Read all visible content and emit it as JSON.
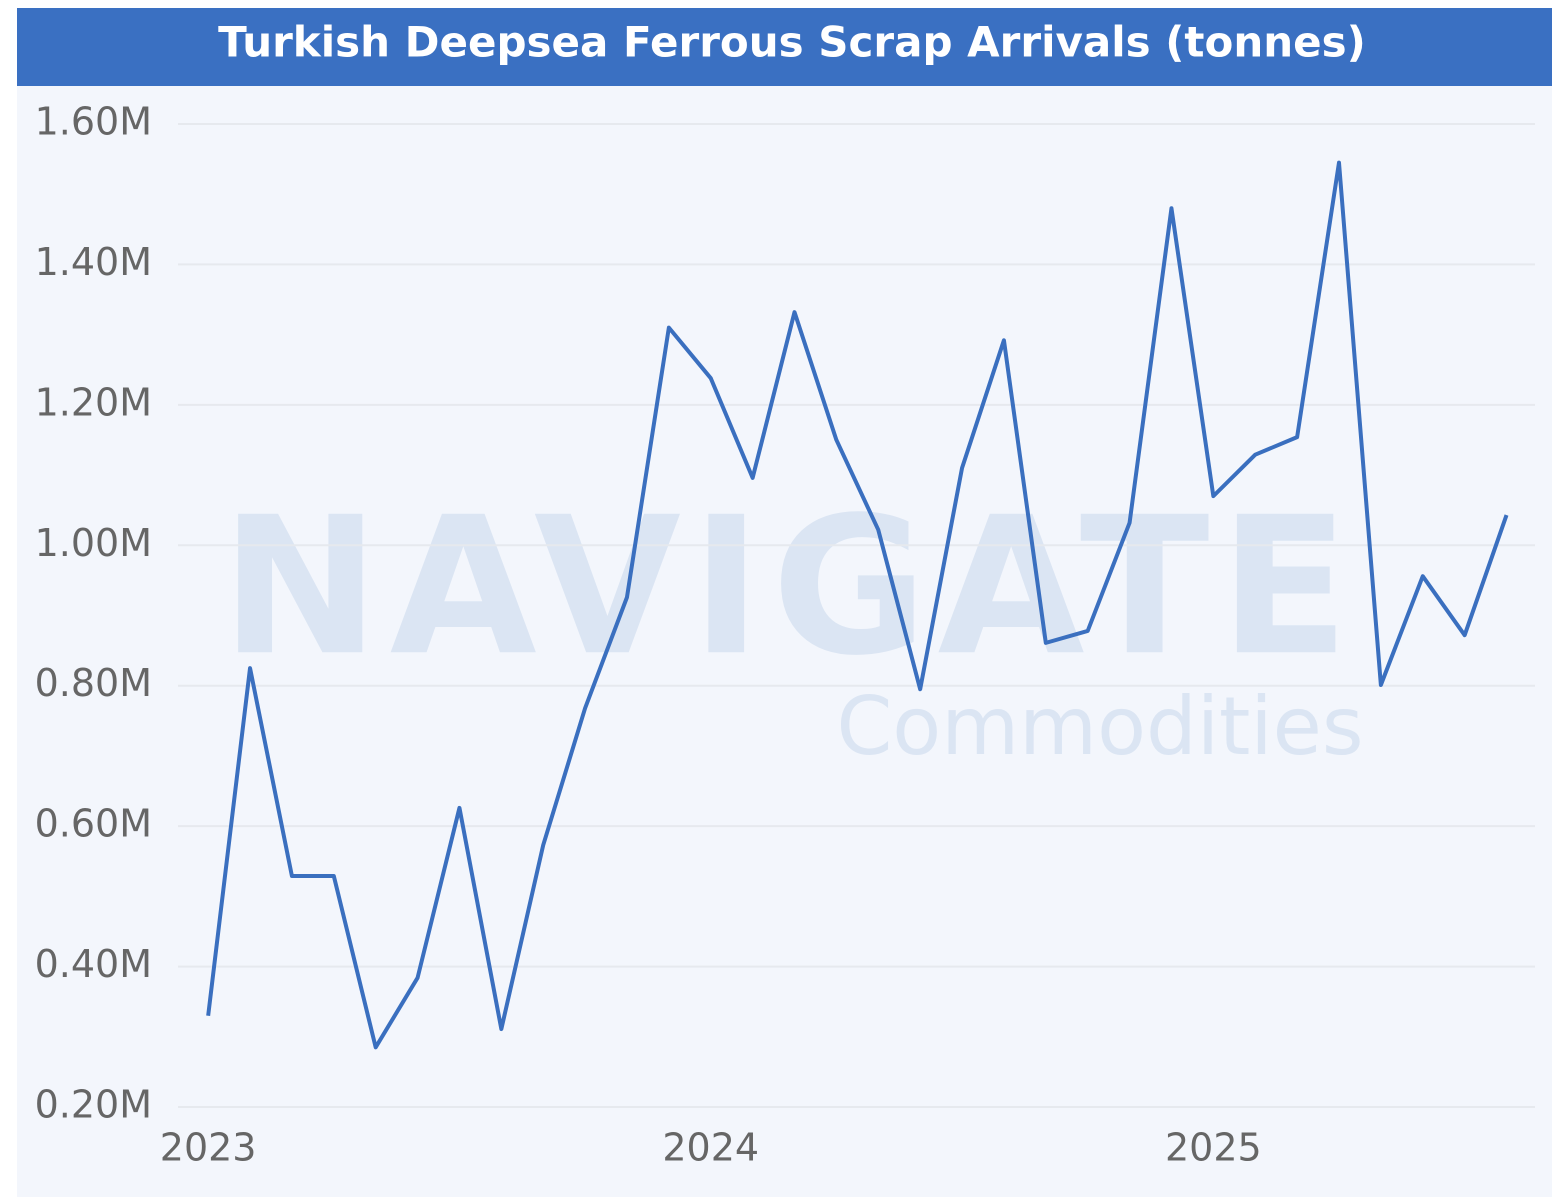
{
  "chart_data": {
    "type": "line",
    "title": "Turkish Deepsea Ferrous Scrap Arrivals (tonnes)",
    "watermark": [
      "NAVIGATE",
      "Commodities"
    ],
    "x": [
      "2023-01",
      "2023-02",
      "2023-03",
      "2023-04",
      "2023-05",
      "2023-06",
      "2023-07",
      "2023-08",
      "2023-09",
      "2023-10",
      "2023-11",
      "2023-12",
      "2024-01",
      "2024-02",
      "2024-03",
      "2024-04",
      "2024-05",
      "2024-06",
      "2024-07",
      "2024-08",
      "2024-09",
      "2024-10",
      "2024-11",
      "2024-12",
      "2025-01",
      "2025-02",
      "2025-03",
      "2025-04",
      "2025-05",
      "2025-06",
      "2025-07",
      "2025-08"
    ],
    "series": [
      {
        "name": "Arrivals",
        "color": "#3a6fbf",
        "values": [
          330000,
          825000,
          529000,
          529000,
          285000,
          384000,
          626000,
          311000,
          573000,
          768000,
          926000,
          1310000,
          1238000,
          1096000,
          1332000,
          1150000,
          1022000,
          795000,
          1110000,
          1292000,
          861000,
          878000,
          1032000,
          1480000,
          1070000,
          1129000,
          1154000,
          1545000,
          801000,
          956000,
          872000,
          1043000
        ]
      }
    ],
    "xlim": [
      2022.94,
      2025.64
    ],
    "xticks": [
      2023,
      2024,
      2025
    ],
    "ylim": [
      200000,
      1600000
    ],
    "yticks": [
      {
        "value": 200000,
        "label": "0.20M"
      },
      {
        "value": 400000,
        "label": "0.40M"
      },
      {
        "value": 600000,
        "label": "0.60M"
      },
      {
        "value": 800000,
        "label": "0.80M"
      },
      {
        "value": 1000000,
        "label": "1.00M"
      },
      {
        "value": 1200000,
        "label": "1.20M"
      },
      {
        "value": 1400000,
        "label": "1.40M"
      },
      {
        "value": 1600000,
        "label": "1.60M"
      }
    ],
    "grid": true,
    "header_color": "#3a70c2"
  }
}
